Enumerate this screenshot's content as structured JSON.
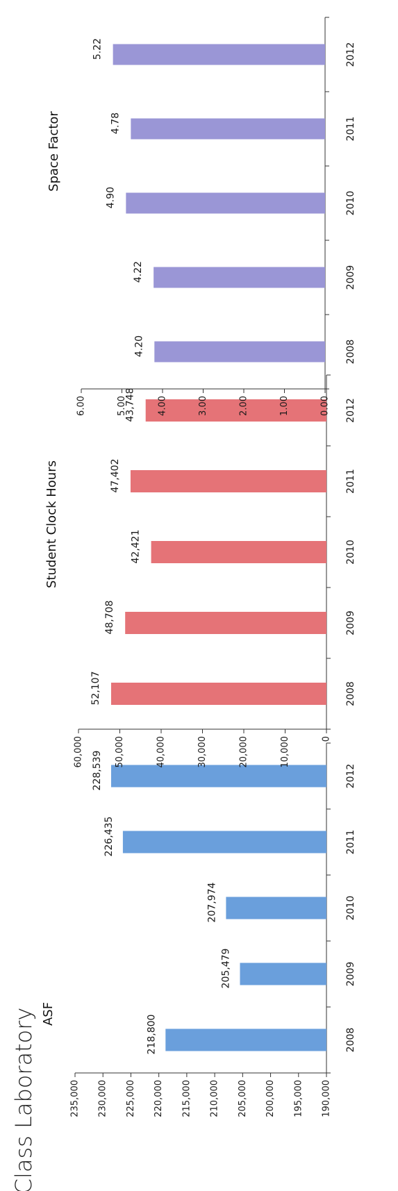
{
  "page_title": "Class Laboratory",
  "colors": {
    "asf": "#6a9fdc",
    "hours": "#e57377",
    "space": "#9a96d6",
    "axis": "#333333"
  },
  "chart_data": [
    {
      "type": "bar",
      "title": "ASF",
      "categories": [
        "2008",
        "2009",
        "2010",
        "2011",
        "2012"
      ],
      "values": [
        218800,
        205479,
        207974,
        226435,
        228539
      ],
      "value_labels": [
        "218,800",
        "205,479",
        "207,974",
        "226,435",
        "228,539"
      ],
      "ylim": [
        190000,
        235000
      ],
      "yticks": [
        190000,
        195000,
        200000,
        205000,
        210000,
        215000,
        220000,
        225000,
        230000,
        235000
      ],
      "ytick_labels": [
        "190,000",
        "195,000",
        "200,000",
        "205,000",
        "210,000",
        "215,000",
        "220,000",
        "225,000",
        "230,000",
        "235,000"
      ],
      "color": "#6a9fdc"
    },
    {
      "type": "bar",
      "title": "Student Clock Hours",
      "categories": [
        "2008",
        "2009",
        "2010",
        "2011",
        "2012"
      ],
      "values": [
        52107,
        48708,
        42421,
        47402,
        43748
      ],
      "value_labels": [
        "52,107",
        "48,708",
        "42,421",
        "47,402",
        "43,748"
      ],
      "ylim": [
        0,
        60000
      ],
      "yticks": [
        0,
        10000,
        20000,
        30000,
        40000,
        50000,
        60000
      ],
      "ytick_labels": [
        "0",
        "10,000",
        "20,000",
        "30,000",
        "40,000",
        "50,000",
        "60,000"
      ],
      "color": "#e57377"
    },
    {
      "type": "bar",
      "title": "Space Factor",
      "categories": [
        "2008",
        "2009",
        "2010",
        "2011",
        "2012"
      ],
      "values": [
        4.2,
        4.22,
        4.9,
        4.78,
        5.22
      ],
      "value_labels": [
        "4.20",
        "4.22",
        "4.90",
        "4.78",
        "5.22"
      ],
      "ylim": [
        0,
        6
      ],
      "yticks": [
        0,
        1,
        2,
        3,
        4,
        5,
        6
      ],
      "ytick_labels": [
        "0.00",
        "1.00",
        "2.00",
        "3.00",
        "4.00",
        "5.00",
        "6.00"
      ],
      "color": "#9a96d6"
    }
  ]
}
